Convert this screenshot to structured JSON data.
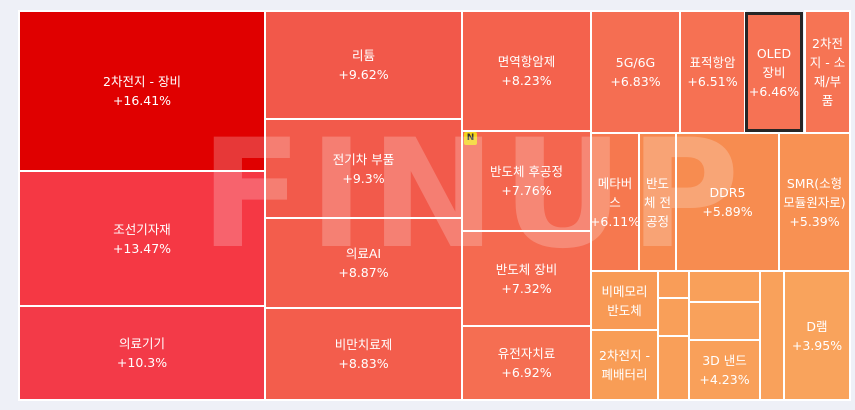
{
  "watermark": "FINUP",
  "badge": "N",
  "tiles": [
    {
      "name": "2차전지 - 장비",
      "change": "+16.41%",
      "color": "#e00000"
    },
    {
      "name": "조선기자재",
      "change": "+13.47%",
      "color": "#f53844"
    },
    {
      "name": "의료기기",
      "change": "+10.3%",
      "color": "#f33a48"
    },
    {
      "name": "리튬",
      "change": "+9.62%",
      "color": "#f2584a"
    },
    {
      "name": "전기차 부품",
      "change": "+9.3%",
      "color": "#f25a4b"
    },
    {
      "name": "의료AI",
      "change": "+8.87%",
      "color": "#f35d4c"
    },
    {
      "name": "비만치료제",
      "change": "+8.83%",
      "color": "#f35d4c"
    },
    {
      "name": "면역항암제",
      "change": "+8.23%",
      "color": "#f4624d"
    },
    {
      "name": "반도체 후공정",
      "change": "+7.76%",
      "color": "#f4664f"
    },
    {
      "name": "반도체 장비",
      "change": "+7.32%",
      "color": "#f56a50"
    },
    {
      "name": "유전자치료",
      "change": "+6.92%",
      "color": "#f56e52"
    },
    {
      "name": "5G/6G",
      "change": "+6.83%",
      "color": "#f56e52"
    },
    {
      "name": "표적항암",
      "change": "+6.51%",
      "color": "#f67153"
    },
    {
      "name": "OLED 장비",
      "change": "+6.46%",
      "color": "#f67254",
      "selected": true
    },
    {
      "name": "2차전지 - 소재/부품",
      "change": "",
      "color": "#f67454"
    },
    {
      "name": "메타버스",
      "change": "+6.11%",
      "color": "#f6784f"
    },
    {
      "name": "반도체 전공정",
      "change": "",
      "color": "#f7894f"
    },
    {
      "name": "DDR5",
      "change": "+5.89%",
      "color": "#f78c50"
    },
    {
      "name": "SMR(소형모듈원자로)",
      "change": "+5.39%",
      "color": "#f89153"
    },
    {
      "name": "비메모리 반도체",
      "change": "",
      "color": "#f89a55"
    },
    {
      "name": "2차전지 - 폐배터리",
      "change": "",
      "color": "#f89d56"
    },
    {
      "name": "3D 낸드",
      "change": "+4.23%",
      "color": "#f9a05a"
    },
    {
      "name": "D램",
      "change": "+3.95%",
      "color": "#f9a35c"
    },
    {
      "name": "",
      "change": "",
      "color": "#f99d58"
    },
    {
      "name": "",
      "change": "",
      "color": "#f99f59"
    },
    {
      "name": "",
      "change": "",
      "color": "#f99f59"
    },
    {
      "name": "",
      "change": "",
      "color": "#f9a05a"
    },
    {
      "name": "",
      "change": "",
      "color": "#f9a15b"
    },
    {
      "name": "",
      "change": "",
      "color": "#f9a15b"
    }
  ]
}
